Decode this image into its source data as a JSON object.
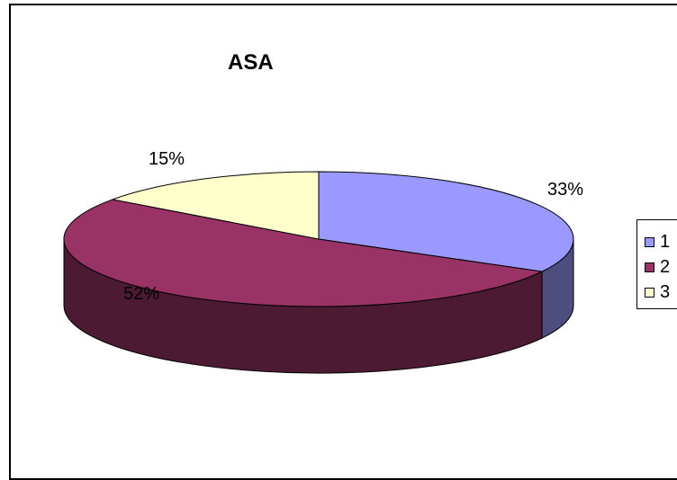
{
  "chart_data": {
    "type": "pie",
    "title": "ASA",
    "categories": [
      "1",
      "2",
      "3"
    ],
    "values": [
      33,
      52,
      15
    ],
    "data_labels": [
      "33%",
      "52%",
      "15%"
    ],
    "colors": [
      "#9999FF",
      "#993366",
      "#FFFFCC"
    ],
    "side_colors": [
      "#4D4D80",
      "#4D1A33",
      "#808066"
    ],
    "legend_position": "right",
    "three_d": true
  }
}
